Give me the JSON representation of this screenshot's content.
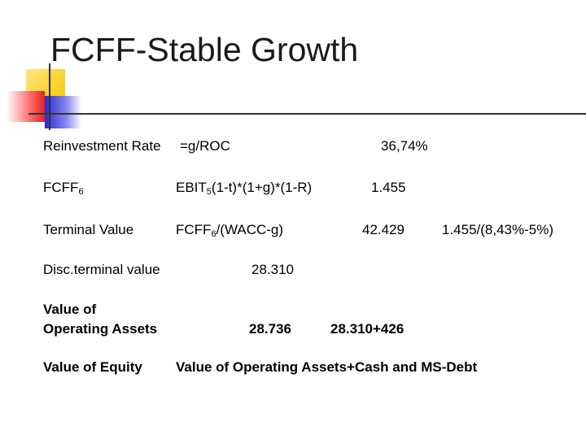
{
  "header": {
    "title": "FCFF-Stable Growth"
  },
  "rows": [
    {
      "label": "Reinvestment Rate",
      "formula": "=g/ROC",
      "value": "36,74%"
    },
    {
      "label": {
        "text": "FCFF",
        "subscript": "6"
      },
      "formula": {
        "text": "EBIT",
        "subscript": "5",
        "rest": "(1-t)*(1+g)*(1-R)"
      },
      "value": "1.455"
    },
    {
      "label": "Terminal Value",
      "formula": {
        "text": "FCFF",
        "subscript": "6",
        "rest": "/(WACC-g)"
      },
      "value": "42.429",
      "note": "1.455/(8,43%-5%)"
    },
    {
      "label": "Disc.terminal value",
      "value": "28.310"
    },
    {
      "label": [
        "Value of",
        "Operating Assets"
      ],
      "value": "28.736",
      "note": "28.310+426"
    },
    {
      "label": "Value of Equity",
      "formula": "Value of Operating Assets+Cash and MS-Debt"
    }
  ]
}
